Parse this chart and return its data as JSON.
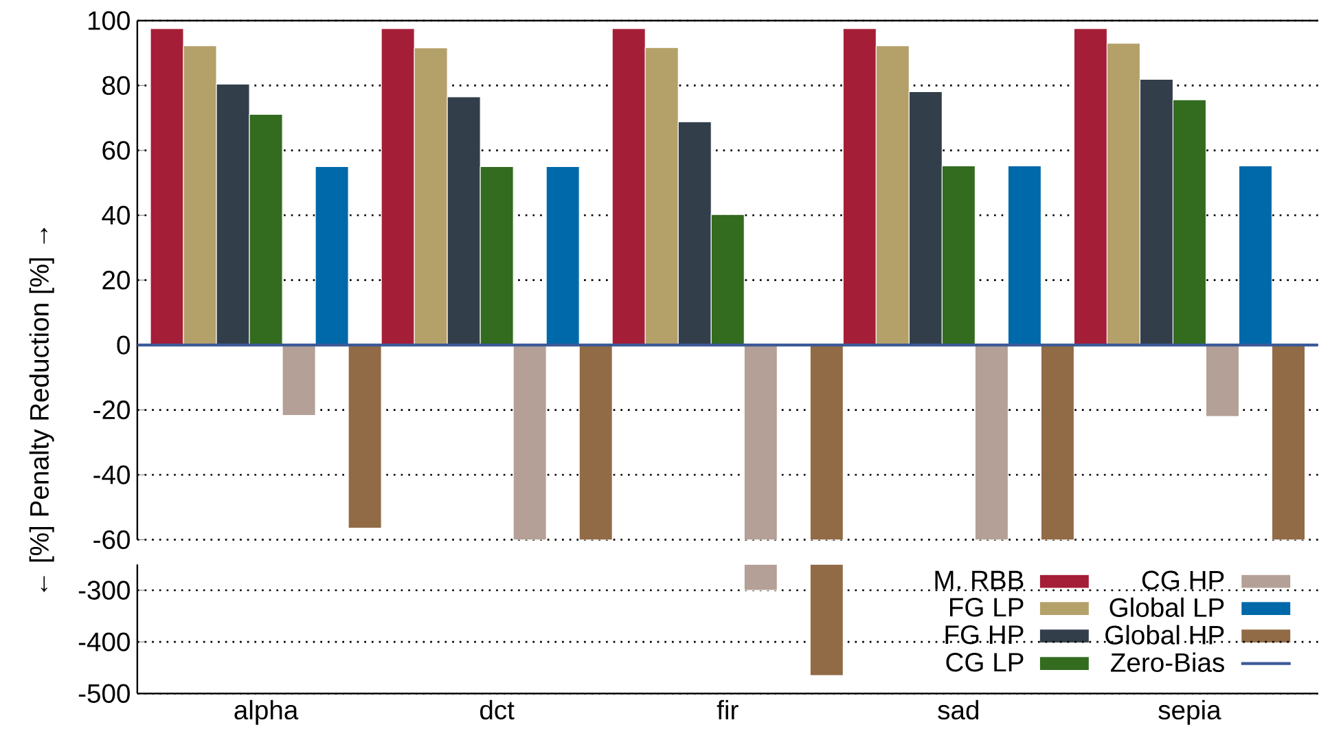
{
  "chart_data": [
    {
      "type": "bar",
      "ylabel": "← [%] Penalty      Reduction [%] →",
      "categories": [
        null,
        null,
        null,
        null,
        null
      ],
      "series": [
        {
          "name": "M. RBB",
          "color": "#a51e37",
          "values": [
            97.5,
            97.5,
            97.5,
            97.5,
            97.5
          ]
        },
        {
          "name": "FG LP",
          "color": "#b4a069",
          "values": [
            92.2,
            91.6,
            91.7,
            92.2,
            93.0
          ]
        },
        {
          "name": "FG HP",
          "color": "#323f4b",
          "values": [
            80.4,
            76.5,
            68.8,
            78.1,
            81.9
          ]
        },
        {
          "name": "CG LP",
          "color": "#336b1f",
          "values": [
            71.1,
            55.0,
            40.2,
            55.2,
            75.6
          ]
        },
        {
          "name": "CG HP",
          "color": "#b4a096",
          "values": [
            -21.7,
            -60,
            -60,
            -60,
            -22.0
          ]
        },
        {
          "name": "Global LP",
          "color": "#0069aa",
          "values": [
            55.0,
            55.0,
            null,
            55.2,
            55.2
          ]
        },
        {
          "name": "Global HP",
          "color": "#916a46",
          "values": [
            -56.4,
            -60,
            -60,
            -60,
            -60
          ]
        }
      ],
      "ylim": [
        -60,
        100
      ],
      "yticks": [
        -60,
        -40,
        -20,
        0,
        20,
        40,
        60,
        80,
        100
      ],
      "grid": "y",
      "legend": "bottom right",
      "tick_labels": "y",
      "ref_lines": [
        {
          "axis": "y",
          "value": 0,
          "label": "Zero-Bias",
          "color": "#3d5a98"
        }
      ]
    },
    {
      "type": "bar",
      "categories": [
        "alpha",
        "dct",
        "fir",
        "sad",
        "sepia"
      ],
      "series": [
        {
          "color": "#a51e37",
          "values": [
            null,
            null,
            null,
            null,
            null
          ]
        },
        {
          "color": "#b4a069",
          "values": [
            null,
            null,
            null,
            null,
            null
          ]
        },
        {
          "color": "#323f4b",
          "values": [
            null,
            null,
            null,
            null,
            null
          ]
        },
        {
          "color": "#336b1f",
          "values": [
            null,
            null,
            null,
            null,
            null
          ]
        },
        {
          "color": "#b4a096",
          "values": [
            null,
            null,
            -300,
            null,
            null
          ]
        },
        {
          "color": "#0069aa",
          "values": [
            null,
            null,
            null,
            null,
            null
          ]
        },
        {
          "color": "#916a46",
          "values": [
            null,
            null,
            -465,
            null,
            null
          ]
        }
      ],
      "ylim": [
        -500,
        -250
      ],
      "yticks": [
        -500,
        -400,
        -300
      ],
      "grid": "y"
    }
  ]
}
